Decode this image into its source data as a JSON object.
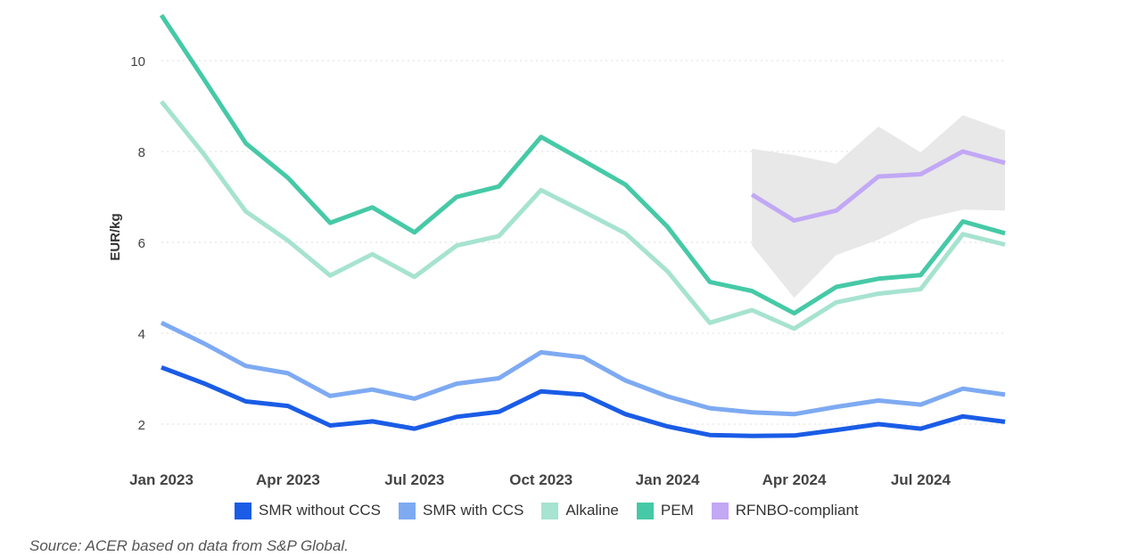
{
  "chart_data": {
    "type": "line",
    "ylabel": "EUR/kg",
    "ylim": [
      1,
      11
    ],
    "yticks": [
      2,
      4,
      6,
      8,
      10
    ],
    "grid": "horizontal dotted",
    "x": [
      "2023-01",
      "2023-02",
      "2023-03",
      "2023-04",
      "2023-05",
      "2023-06",
      "2023-07",
      "2023-08",
      "2023-09",
      "2023-10",
      "2023-11",
      "2023-12",
      "2024-01",
      "2024-02",
      "2024-03",
      "2024-04",
      "2024-05",
      "2024-06",
      "2024-07",
      "2024-08",
      "2024-09"
    ],
    "xtick_labels": [
      "Jan 2023",
      "Apr 2023",
      "Jul 2023",
      "Oct 2023",
      "Jan 2024",
      "Apr 2024",
      "Jul 2024"
    ],
    "xtick_indices": [
      0,
      3,
      6,
      9,
      12,
      15,
      18
    ],
    "series": [
      {
        "name": "SMR without CCS",
        "color": "#1a5ce6",
        "values": [
          3.25,
          2.9,
          2.5,
          2.4,
          1.97,
          2.06,
          1.9,
          2.16,
          2.27,
          2.72,
          2.65,
          2.22,
          1.95,
          1.76,
          1.74,
          1.75,
          1.87,
          2.0,
          1.9,
          2.17,
          2.05
        ]
      },
      {
        "name": "SMR with CCS",
        "color": "#7eaaf2",
        "values": [
          4.23,
          3.78,
          3.28,
          3.12,
          2.62,
          2.76,
          2.56,
          2.89,
          3.01,
          3.58,
          3.47,
          2.96,
          2.61,
          2.35,
          2.26,
          2.22,
          2.38,
          2.52,
          2.43,
          2.78,
          2.65
        ]
      },
      {
        "name": "Alkaline",
        "color": "#a6e3d0",
        "values": [
          9.1,
          7.95,
          6.68,
          6.04,
          5.27,
          5.74,
          5.24,
          5.93,
          6.14,
          7.15,
          6.68,
          6.2,
          5.36,
          4.23,
          4.51,
          4.1,
          4.68,
          4.87,
          4.97,
          6.18,
          5.95
        ]
      },
      {
        "name": "PEM",
        "color": "#46c9a6",
        "values": [
          11.0,
          9.6,
          8.18,
          7.42,
          6.43,
          6.77,
          6.22,
          7.0,
          7.23,
          8.32,
          7.8,
          7.27,
          6.34,
          5.13,
          4.93,
          4.44,
          5.02,
          5.2,
          5.28,
          6.46,
          6.2
        ]
      },
      {
        "name": "RFNBO-compliant",
        "color": "#c2a8f5",
        "values": [
          null,
          null,
          null,
          null,
          null,
          null,
          null,
          null,
          null,
          null,
          null,
          null,
          null,
          null,
          7.05,
          6.48,
          6.7,
          7.45,
          7.5,
          8.0,
          7.75
        ]
      }
    ],
    "band": {
      "color": "#e8e8e8",
      "from_index": 14,
      "upper": [
        8.06,
        7.92,
        7.73,
        8.55,
        7.98,
        8.8,
        8.46
      ],
      "lower": [
        5.93,
        4.78,
        5.72,
        6.06,
        6.5,
        6.72,
        6.7
      ]
    }
  },
  "legend": [
    {
      "label": "SMR without CCS",
      "color": "#1a5ce6"
    },
    {
      "label": "SMR with CCS",
      "color": "#7eaaf2"
    },
    {
      "label": "Alkaline",
      "color": "#a6e3d0"
    },
    {
      "label": "PEM",
      "color": "#46c9a6"
    },
    {
      "label": "RFNBO-compliant",
      "color": "#c2a8f5"
    }
  ],
  "source": "Source: ACER based on data from S&P Global."
}
